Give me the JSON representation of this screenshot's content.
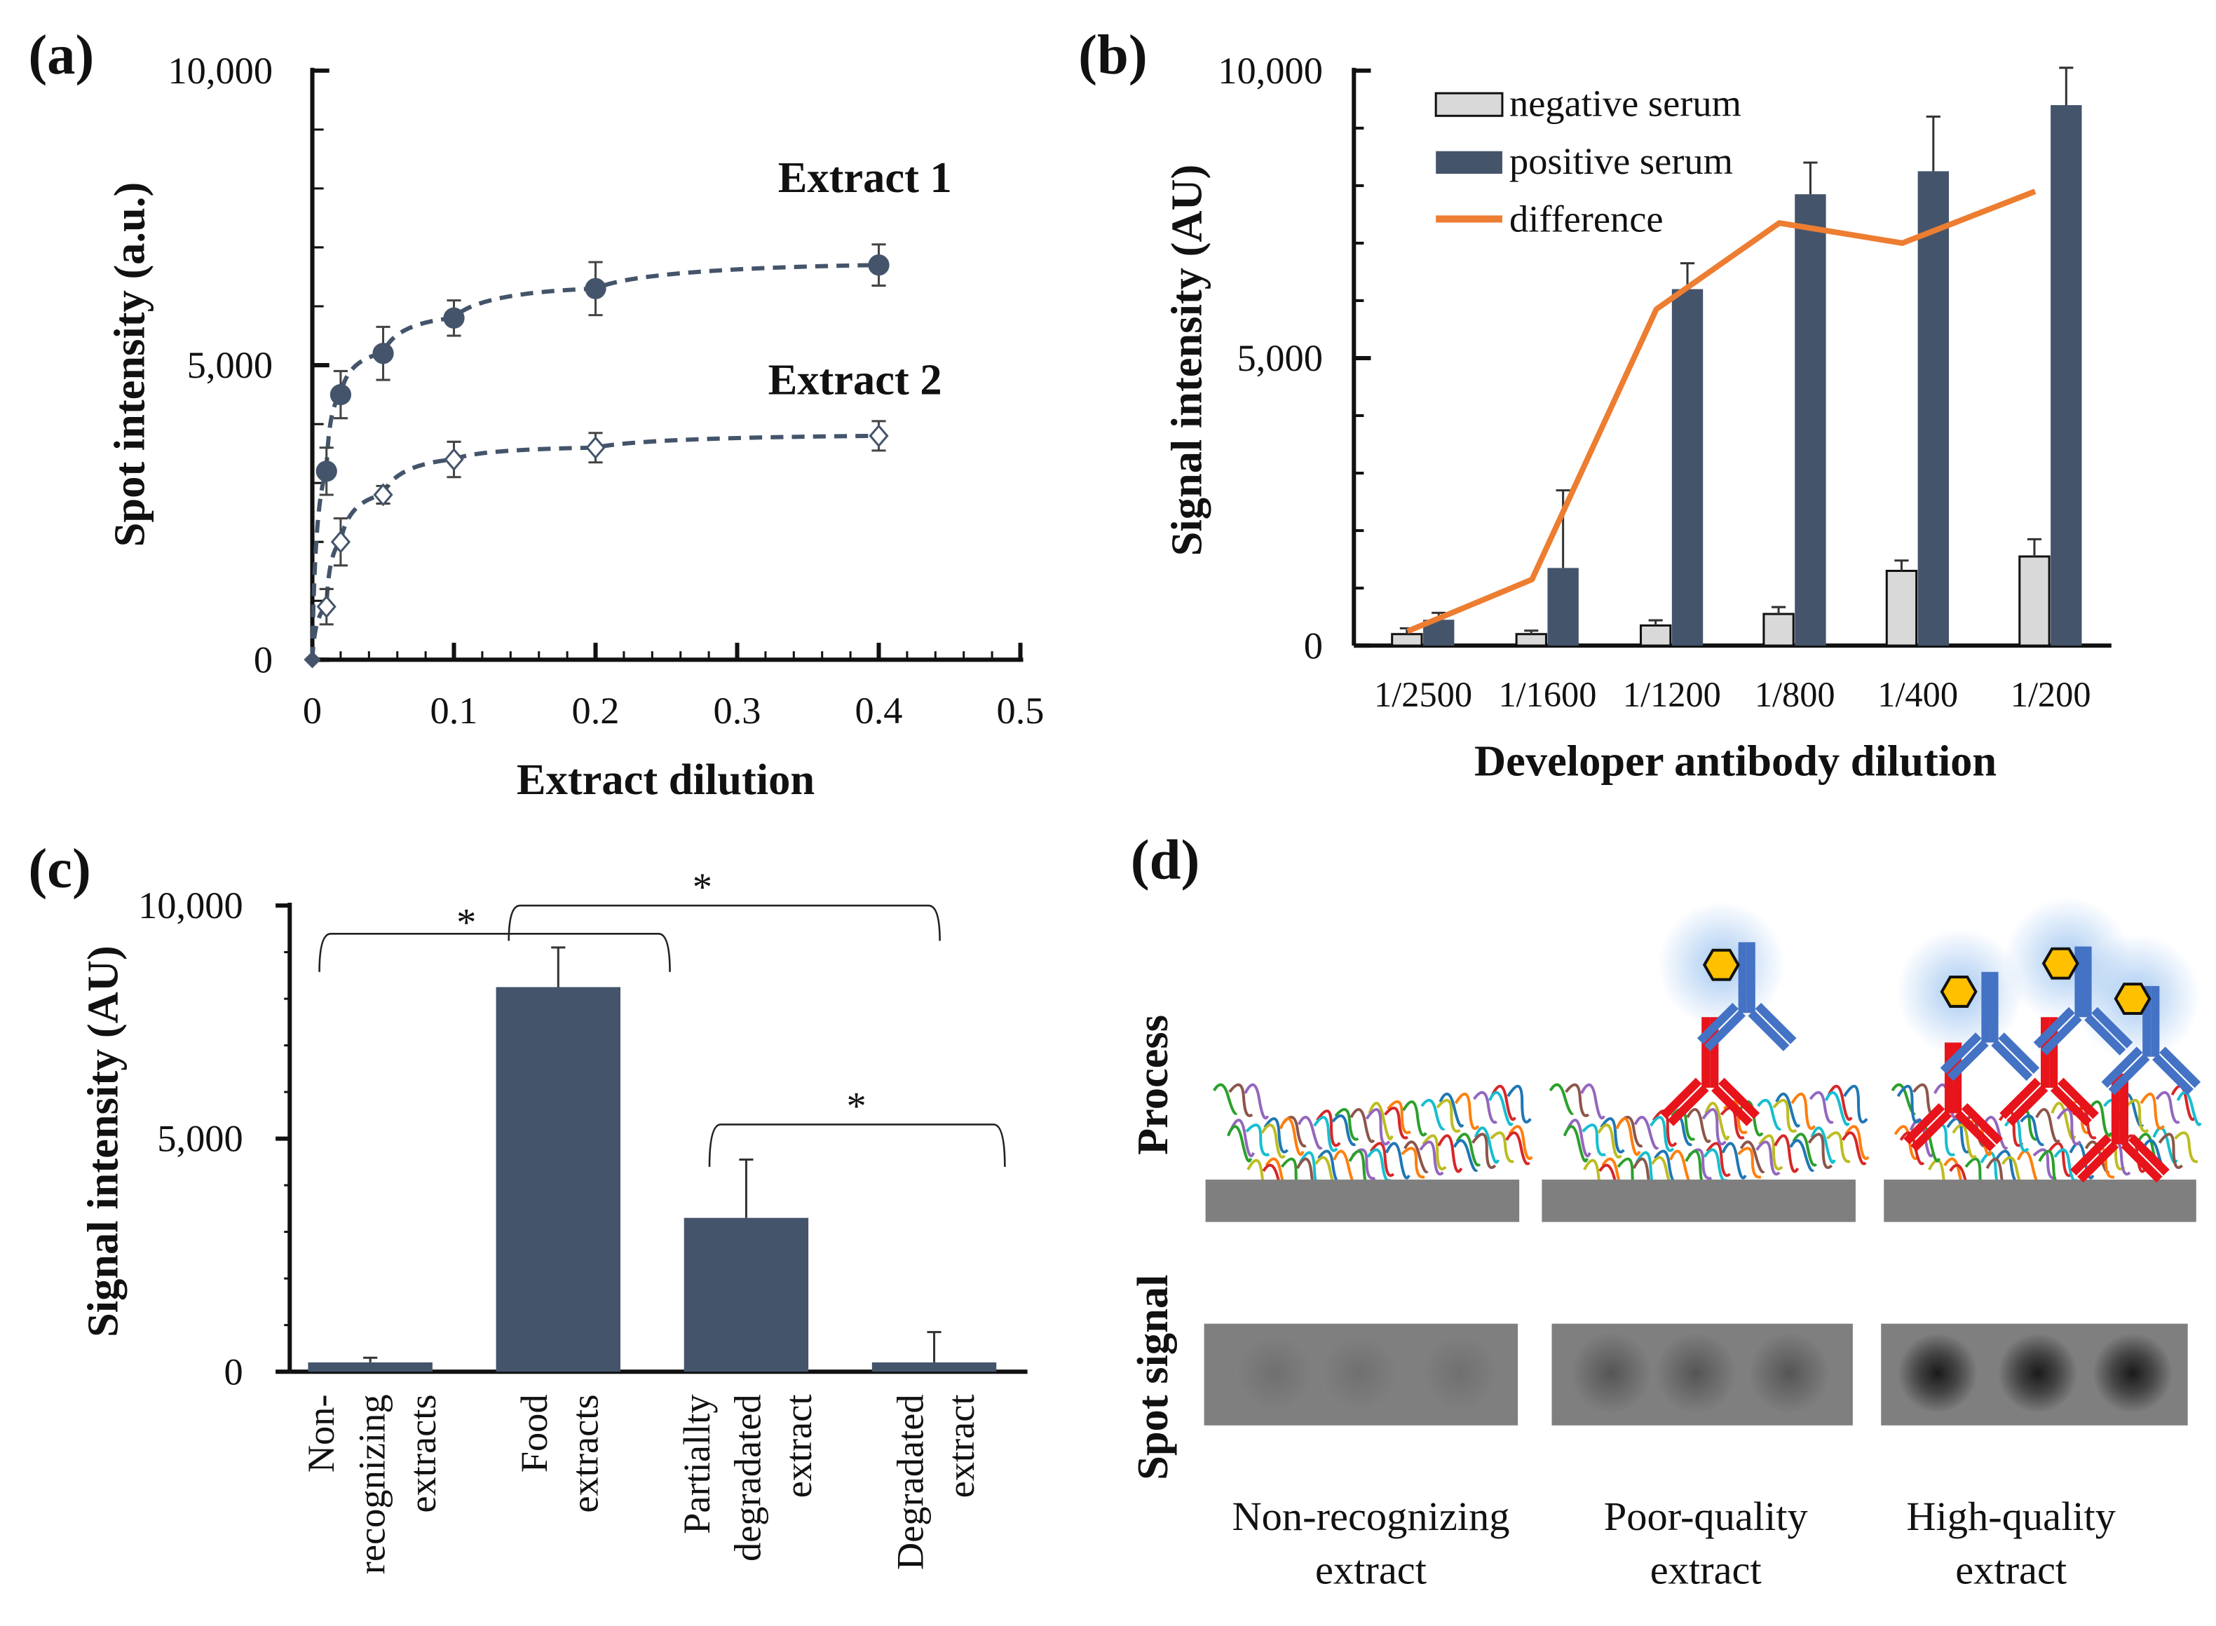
{
  "colors": {
    "navy": "#44546a",
    "orange": "#ed7d31",
    "light": "#d9d9d9",
    "red": "#e8141b",
    "blue": "#4472c4",
    "gold": "#ffc000"
  },
  "chart_data": [
    {
      "panel": "(a)",
      "type": "scatter",
      "xlabel": "Extract dilution",
      "ylabel": "Spot intensity (a.u.)",
      "xlim": [
        0,
        0.5
      ],
      "ylim": [
        0,
        10000
      ],
      "xticks": [
        "0",
        "0.1",
        "0.2",
        "0.3",
        "0.4",
        "0.5"
      ],
      "yticks": [
        "0",
        "5,000",
        "10,000"
      ],
      "series": [
        {
          "name": "Extract 1",
          "marker": "filled-circle",
          "x": [
            0,
            0.01,
            0.02,
            0.05,
            0.1,
            0.2,
            0.4
          ],
          "y": [
            0,
            3200,
            4500,
            5200,
            5800,
            6300,
            6700
          ],
          "err": [
            0,
            400,
            400,
            450,
            300,
            450,
            350
          ]
        },
        {
          "name": "Extract 2",
          "marker": "open-diamond",
          "x": [
            0,
            0.01,
            0.02,
            0.05,
            0.1,
            0.2,
            0.4
          ],
          "y": [
            0,
            900,
            2000,
            2800,
            3400,
            3600,
            3800
          ],
          "err": [
            0,
            300,
            400,
            150,
            300,
            250,
            250
          ]
        }
      ]
    },
    {
      "panel": "(b)",
      "type": "bar",
      "xlabel": "Developer antibody dilution",
      "ylabel": "Signal intensity (AU)",
      "ylim": [
        0,
        10000
      ],
      "yticks": [
        "0",
        "5,000",
        "10,000"
      ],
      "legend": "top-left",
      "categories": [
        "1/2500",
        "1/1600",
        "1/1200",
        "1/800",
        "1/400",
        "1/200"
      ],
      "series": [
        {
          "name": "negative serum",
          "kind": "bar",
          "values": [
            200,
            200,
            350,
            550,
            1300,
            1550
          ],
          "err": [
            100,
            60,
            90,
            120,
            180,
            300
          ]
        },
        {
          "name": "positive serum",
          "kind": "bar",
          "values": [
            450,
            1350,
            6200,
            7850,
            8250,
            9400
          ],
          "err": [
            120,
            1350,
            450,
            550,
            950,
            650
          ]
        },
        {
          "name": "difference",
          "kind": "line",
          "values": [
            250,
            1150,
            5850,
            7350,
            7000,
            7900
          ]
        }
      ]
    },
    {
      "panel": "(c)",
      "type": "bar",
      "ylabel": "Signal intensity (AU)",
      "ylim": [
        0,
        10000
      ],
      "yticks": [
        "0",
        "5,000",
        "10,000"
      ],
      "categories": [
        [
          "Non-",
          "recognizing",
          "extracts"
        ],
        [
          "Food",
          "extracts"
        ],
        [
          "Partiallty",
          "degradated",
          "extract"
        ],
        [
          "Degradated",
          "extract"
        ]
      ],
      "values": [
        200,
        8250,
        3300,
        200
      ],
      "err": [
        100,
        850,
        1250,
        650
      ],
      "significance": [
        {
          "from": 0,
          "to": 2,
          "label": "*"
        },
        {
          "from": 1,
          "to": 3,
          "label": "*"
        },
        {
          "from": 2,
          "to": 3,
          "label": "*"
        }
      ]
    }
  ],
  "diagram": {
    "panel": "(d)",
    "row_labels": [
      "Process",
      "Spot signal"
    ],
    "columns": [
      [
        "Non-recognizing",
        "extract"
      ],
      [
        "Poor-quality",
        "extract"
      ],
      [
        "High-quality",
        "extract"
      ]
    ]
  }
}
